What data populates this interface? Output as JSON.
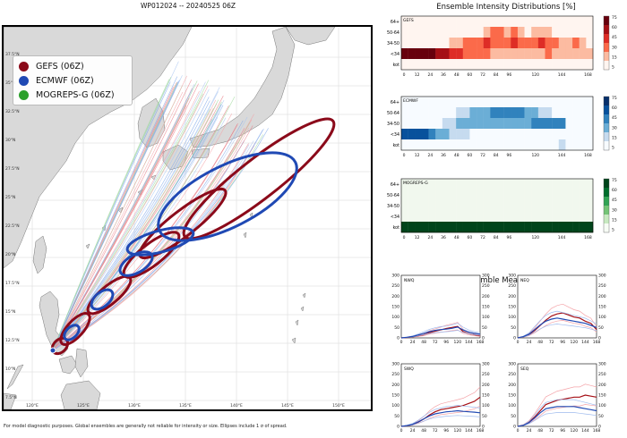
{
  "map": {
    "title": "WP012024 -- 20240525 06Z",
    "legend": [
      {
        "label": "GEFS (06Z)",
        "color": "#8b0a1a"
      },
      {
        "label": "ECMWF (06Z)",
        "color": "#1f49b4"
      },
      {
        "label": "MOGREPS-G (06Z)",
        "color": "#2ca02c"
      }
    ],
    "lon_labels": [
      "120°E",
      "125°E",
      "130°E",
      "135°E",
      "140°E",
      "145°E",
      "150°E"
    ],
    "lat_labels": [
      "7.5°N",
      "10°N",
      "12.5°N",
      "15°N",
      "17.5°N",
      "20°N",
      "22.5°N",
      "25°N",
      "27.5°N",
      "30°N",
      "32.5°N",
      "35°N",
      "37.5°N"
    ],
    "footer": "For model diagnostic purposes. Global ensembles are generally not reliable for intensity or size. Ellipses include 1 σ of spread."
  },
  "intensity": {
    "title": "Ensemble Intensity Distributions [%]",
    "rows": [
      "64+",
      "50-64",
      "34-50",
      "<34",
      "kot"
    ],
    "x_ticks": [
      0,
      12,
      24,
      36,
      48,
      60,
      72,
      84,
      96,
      120,
      144,
      168
    ],
    "colorbar_ticks": [
      75,
      60,
      45,
      30,
      15,
      5
    ],
    "panels": [
      {
        "name": "GEFS",
        "scale": "red"
      },
      {
        "name": "ECMWF",
        "scale": "blue"
      },
      {
        "name": "MOGREPS-G",
        "scale": "green"
      }
    ]
  },
  "r34": {
    "title": "R34 Ensemble Mean & IQR [nm]",
    "y_ticks": [
      0,
      50,
      100,
      150,
      200,
      250,
      300
    ],
    "x_ticks": [
      0,
      24,
      48,
      72,
      96,
      120,
      144,
      168
    ],
    "panels": [
      "NWQ",
      "NEQ",
      "SWQ",
      "SEQ"
    ]
  },
  "chart_data": [
    {
      "type": "line",
      "title": "R34 NWQ",
      "x": [
        0,
        12,
        24,
        36,
        48,
        60,
        72,
        84,
        96,
        108,
        120,
        132,
        144,
        156,
        168
      ],
      "series": [
        {
          "name": "GEFS mean",
          "values": [
            0,
            2,
            5,
            10,
            15,
            25,
            32,
            38,
            45,
            50,
            55,
            30,
            20,
            15,
            10
          ]
        },
        {
          "name": "ECMWF mean",
          "values": [
            0,
            3,
            7,
            14,
            22,
            30,
            36,
            40,
            42,
            46,
            52,
            38,
            28,
            22,
            18
          ]
        }
      ],
      "ylim": [
        0,
        300
      ]
    },
    {
      "type": "line",
      "title": "R34 NEQ",
      "x": [
        0,
        12,
        24,
        36,
        48,
        60,
        72,
        84,
        96,
        108,
        120,
        132,
        144,
        156,
        168
      ],
      "series": [
        {
          "name": "GEFS mean",
          "values": [
            0,
            5,
            15,
            35,
            60,
            85,
            105,
            115,
            120,
            110,
            100,
            95,
            80,
            70,
            40
          ]
        },
        {
          "name": "ECMWF mean",
          "values": [
            0,
            6,
            18,
            40,
            62,
            80,
            90,
            95,
            90,
            85,
            80,
            75,
            70,
            60,
            50
          ]
        }
      ],
      "ylim": [
        0,
        300
      ]
    },
    {
      "type": "line",
      "title": "R34 SWQ",
      "x": [
        0,
        12,
        24,
        36,
        48,
        60,
        72,
        84,
        96,
        108,
        120,
        132,
        144,
        156,
        168
      ],
      "series": [
        {
          "name": "GEFS mean",
          "values": [
            0,
            3,
            8,
            20,
            35,
            55,
            70,
            80,
            85,
            90,
            95,
            100,
            110,
            120,
            140
          ]
        },
        {
          "name": "ECMWF mean",
          "values": [
            0,
            4,
            10,
            22,
            36,
            50,
            60,
            65,
            70,
            72,
            75,
            72,
            70,
            68,
            65
          ]
        }
      ],
      "ylim": [
        0,
        300
      ]
    },
    {
      "type": "line",
      "title": "R34 SEQ",
      "x": [
        0,
        12,
        24,
        36,
        48,
        60,
        72,
        84,
        96,
        108,
        120,
        132,
        144,
        156,
        168
      ],
      "series": [
        {
          "name": "GEFS mean",
          "values": [
            0,
            6,
            20,
            45,
            75,
            105,
            115,
            125,
            130,
            135,
            140,
            140,
            150,
            145,
            140
          ]
        },
        {
          "name": "ECMWF mean",
          "values": [
            0,
            5,
            18,
            40,
            65,
            85,
            90,
            95,
            95,
            95,
            95,
            90,
            85,
            80,
            75
          ]
        }
      ],
      "ylim": [
        0,
        300
      ]
    }
  ]
}
